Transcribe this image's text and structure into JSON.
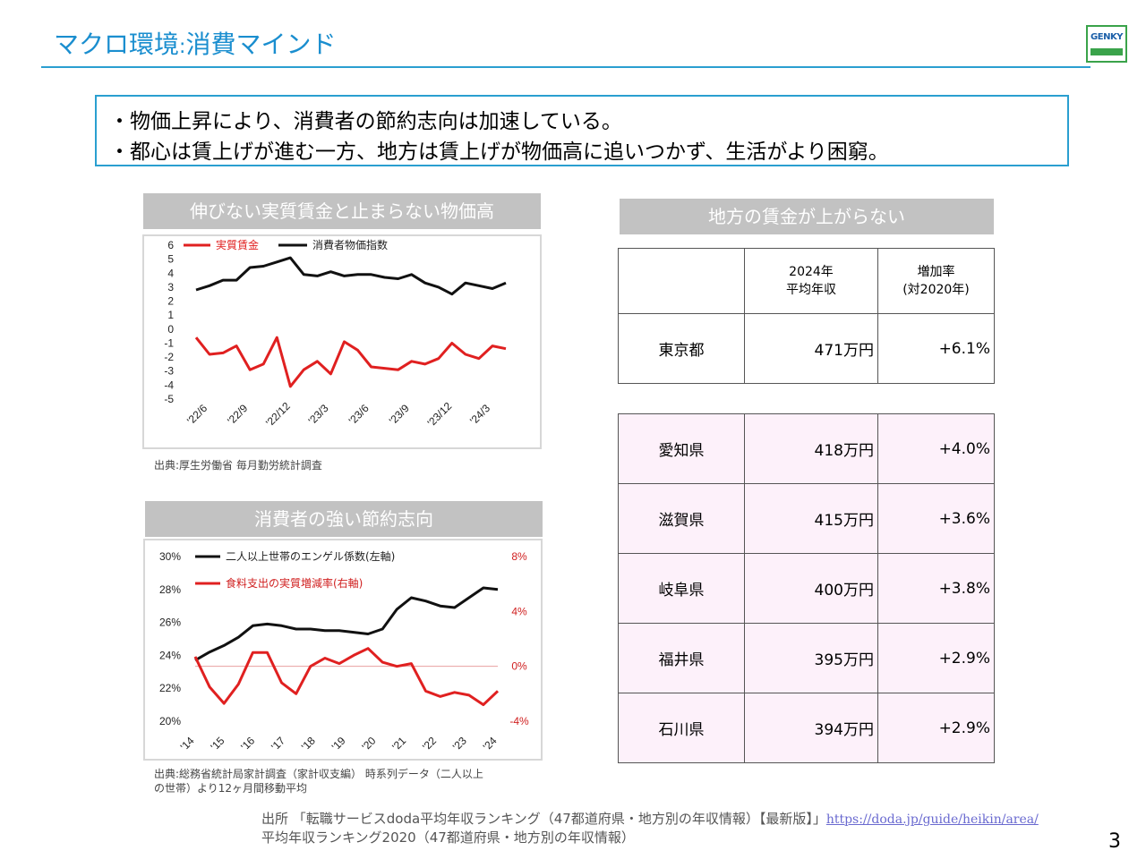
{
  "title": {
    "main": "マクロ環境",
    "sep": ":",
    "sub": "消費マインド"
  },
  "logo": {
    "text": "GENKY"
  },
  "callout": {
    "line1": "・物価上昇により、消費者の節約志向は加速している。",
    "line2": "・都心は賃上げが進む一方、地方は賃上げが物価高に追いつかず、生活がより困窮。"
  },
  "chart1": {
    "header": "伸びない実質賃金と止まらない物価高",
    "source": "出典:厚生労働省 毎月勤労統計調査"
  },
  "chart2": {
    "header": "消費者の強い節約志向",
    "source_line1": "出典:総務省統計局家計調査（家計収支編） 時系列データ（二人以上",
    "source_line2": "の世帯）より12ヶ月間移動平均"
  },
  "table_header": "地方の賃金が上がらない",
  "table": {
    "col1_line1": "2024年",
    "col1_line2": "平均年収",
    "col2_line1": "増加率",
    "col2_line2": "(対2020年)",
    "tokyo": {
      "pref": "東京都",
      "income": "471万円",
      "rate": "+6.1%"
    },
    "rows": [
      {
        "pref": "愛知県",
        "income": "418万円",
        "rate": "+4.0%"
      },
      {
        "pref": "滋賀県",
        "income": "415万円",
        "rate": "+3.6%"
      },
      {
        "pref": "岐阜県",
        "income": "400万円",
        "rate": "+3.8%"
      },
      {
        "pref": "福井県",
        "income": "395万円",
        "rate": "+2.9%"
      },
      {
        "pref": "石川県",
        "income": "394万円",
        "rate": "+2.9%"
      }
    ]
  },
  "footnote": {
    "prefix": "出所 「転職サービスdoda平均年収ランキング（47都道府県・地方別の年収情報）【最新版】」",
    "link": "https://doda.jp/guide/heikin/area/",
    "line2": "平均年収ランキング2020（47都道府県・地方別の年収情報）"
  },
  "page_number": "3",
  "chart_data": [
    {
      "type": "line",
      "title": "伸びない実質賃金と止まらない物価高",
      "ylim": [
        -5,
        6
      ],
      "yticks": [
        6,
        5,
        4,
        3,
        2,
        1,
        0,
        -1,
        -2,
        -3,
        -4,
        -5
      ],
      "xtick_labels": [
        "'22/6",
        "'22/9",
        "'22/12",
        "'23/3",
        "'23/6",
        "'23/9",
        "'23/12",
        "'24/3"
      ],
      "legend": "top-left",
      "grid": false,
      "series": [
        {
          "name": "実質賃金",
          "color": "#e02020",
          "values": [
            -0.6,
            -1.8,
            -1.7,
            -1.2,
            -2.9,
            -2.5,
            -0.6,
            -4.1,
            -2.9,
            -2.3,
            -3.2,
            -0.9,
            -1.5,
            -2.7,
            -2.8,
            -2.9,
            -2.3,
            -2.5,
            -2.1,
            -1.0,
            -1.8,
            -2.1,
            -1.2,
            -1.4
          ]
        },
        {
          "name": "消費者物価指数",
          "color": "#111111",
          "values": [
            2.8,
            3.1,
            3.5,
            3.5,
            4.4,
            4.5,
            4.8,
            5.1,
            3.9,
            3.8,
            4.1,
            3.8,
            3.9,
            3.9,
            3.7,
            3.6,
            3.9,
            3.3,
            3.0,
            2.5,
            3.3,
            3.1,
            2.9,
            3.3
          ]
        }
      ]
    },
    {
      "type": "line",
      "title": "消費者の強い節約志向",
      "xtick_labels": [
        "'14",
        "'15",
        "'16",
        "'17",
        "'18",
        "'19",
        "'20",
        "'21",
        "'22",
        "'23",
        "'24"
      ],
      "y_left": {
        "ylim": [
          20,
          30
        ],
        "ticks": [
          "30%",
          "28%",
          "26%",
          "24%",
          "22%",
          "20%"
        ]
      },
      "y_right": {
        "ylim": [
          -4,
          8
        ],
        "ticks": [
          "8%",
          "4%",
          "0%",
          "-4%"
        ]
      },
      "legend": "top-left",
      "series": [
        {
          "name": "二人以上世帯のエンゲル係数(左軸)",
          "axis": "left",
          "color": "#111111",
          "values": [
            23.7,
            24.2,
            24.6,
            25.1,
            25.8,
            25.9,
            25.8,
            25.6,
            25.6,
            25.5,
            25.5,
            25.4,
            25.3,
            25.6,
            26.8,
            27.5,
            27.3,
            27.0,
            26.9,
            27.5,
            28.1,
            28.0
          ]
        },
        {
          "name": "食料支出の実質増減率(右軸)",
          "axis": "right",
          "color": "#e02020",
          "values": [
            0.7,
            -1.5,
            -2.7,
            -1.3,
            1.0,
            1.0,
            -1.2,
            -2.0,
            0.0,
            0.6,
            0.2,
            0.8,
            1.3,
            0.3,
            0.0,
            0.2,
            -1.8,
            -2.2,
            -1.9,
            -2.1,
            -2.8,
            -1.8
          ]
        }
      ]
    }
  ]
}
